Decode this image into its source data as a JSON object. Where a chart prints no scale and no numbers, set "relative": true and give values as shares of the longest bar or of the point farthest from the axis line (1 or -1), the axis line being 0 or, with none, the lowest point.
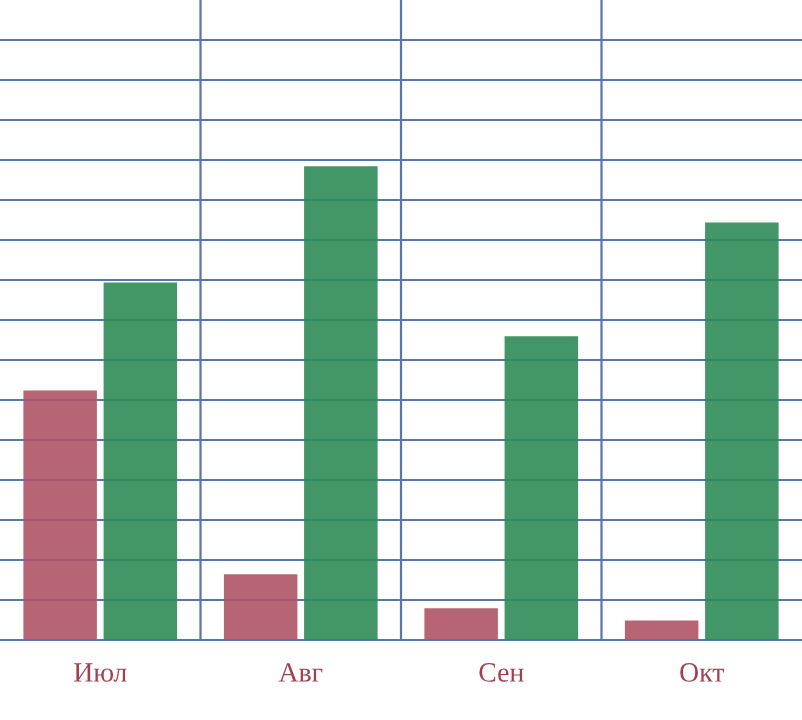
{
  "chart_data": {
    "type": "bar",
    "relative": true,
    "grid": true,
    "categories": [
      "Июл",
      "Авг",
      "Сен",
      "Окт"
    ],
    "series": [
      {
        "color": "#b05566",
        "values": [
          0.525,
          0.136,
          0.064,
          0.038
        ]
      },
      {
        "color": "#2e8b57",
        "values": [
          0.754,
          1,
          0.64,
          0.881
        ]
      }
    ]
  }
}
